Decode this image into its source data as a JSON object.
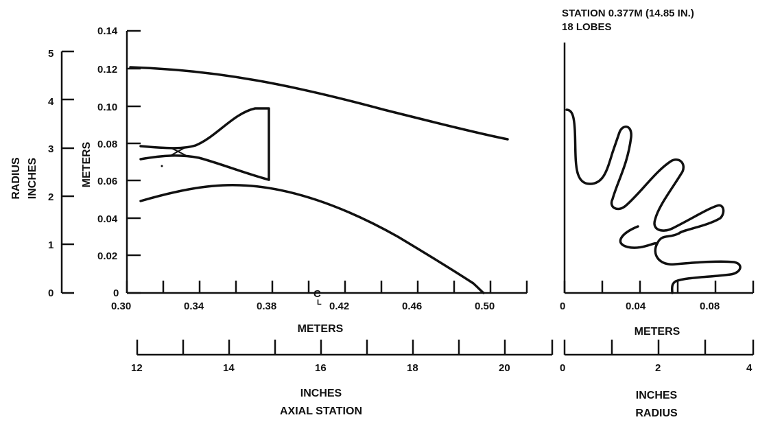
{
  "station_label": "STATION 0.377M (14.85 IN.)",
  "lobes_label": "18 LOBES",
  "left_axis_title_1": "RADIUS",
  "left_axis_title_2": "INCHES",
  "meters_axis_title": "METERS",
  "radius_inch_ticks": [
    "5",
    "4",
    "3",
    "2",
    "1",
    "0"
  ],
  "radius_meter_ticks": [
    "0.14",
    "0.12",
    "0.10",
    "0.08",
    "0.06",
    "0.04",
    "0.02",
    "0"
  ],
  "axial_meter_ticks": [
    "0.30",
    "0.34",
    "0.38",
    "0.42",
    "0.46",
    "0.50"
  ],
  "axial_meters_title": "METERS",
  "axial_inch_ticks": [
    "12",
    "14",
    "16",
    "18",
    "20"
  ],
  "axial_inches_title": "INCHES",
  "axial_station_title": "AXIAL STATION",
  "centerline_symbol": "C",
  "centerline_sub": "L",
  "right_meter_ticks": [
    "0",
    "0.04",
    "0.08"
  ],
  "right_meters_title": "METERS",
  "right_inch_ticks": [
    "0",
    "2",
    "4"
  ],
  "right_inches_title": "INCHES",
  "right_radius_title": "RADIUS"
}
